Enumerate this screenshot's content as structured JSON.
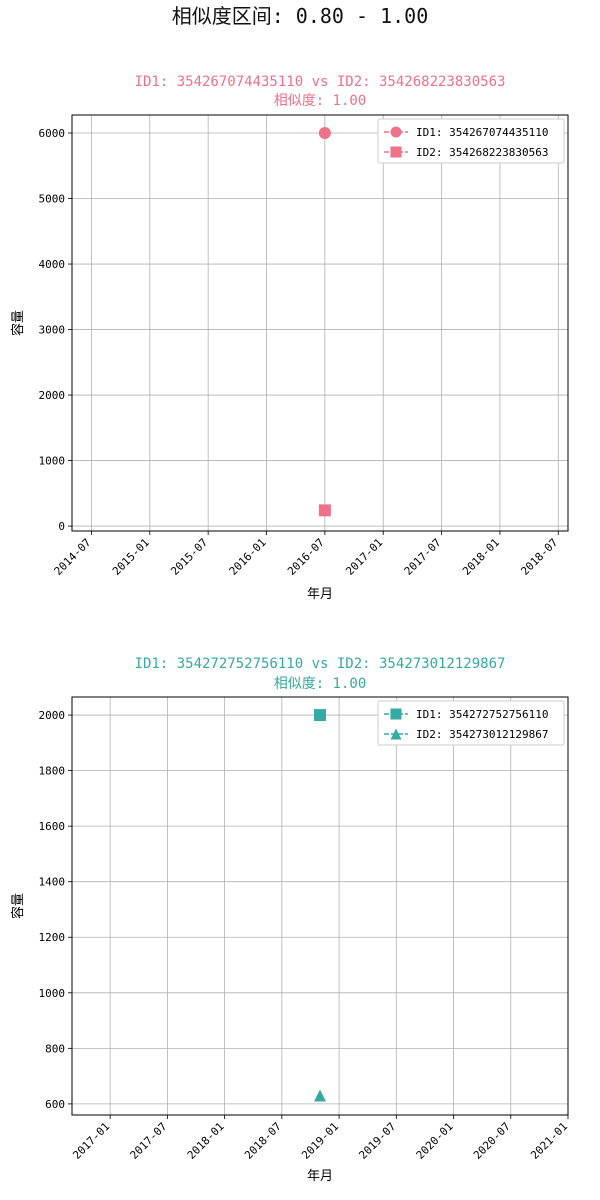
{
  "figure": {
    "suptitle": "相似度区间: 0.80 - 1.00"
  },
  "chart_data": [
    {
      "type": "scatter",
      "title": "ID1: 354267074435110 vs ID2: 354268223830563",
      "subtitle": "相似度: 1.00",
      "title_color": "#f0718a",
      "xlabel": "年月",
      "ylabel": "容量",
      "x_ticks": [
        "2014-07",
        "2015-01",
        "2015-07",
        "2016-01",
        "2016-07",
        "2017-01",
        "2017-07",
        "2018-01",
        "2018-07"
      ],
      "y_ticks": [
        "0",
        "1000",
        "2000",
        "3000",
        "4000",
        "5000",
        "6000"
      ],
      "xlim": [
        "2014-05",
        "2018-08"
      ],
      "ylim": [
        -75,
        6275
      ],
      "grid": true,
      "legend_position": "top-right",
      "series": [
        {
          "name": "ID1: 354267074435110",
          "marker": "circle",
          "color": "#f0718a",
          "points": [
            {
              "x": "2016-07",
              "y": 6000
            }
          ]
        },
        {
          "name": "ID2: 354268223830563",
          "marker": "square",
          "color": "#f0718a",
          "points": [
            {
              "x": "2016-07",
              "y": 240
            }
          ]
        }
      ]
    },
    {
      "type": "scatter",
      "title": "ID1: 354272752756110 vs ID2: 354273012129867",
      "subtitle": "相似度: 1.00",
      "title_color": "#35aaa5",
      "xlabel": "年月",
      "ylabel": "容量",
      "x_ticks": [
        "2017-01",
        "2017-07",
        "2018-01",
        "2018-07",
        "2019-01",
        "2019-07",
        "2020-01",
        "2020-07",
        "2021-01"
      ],
      "y_ticks": [
        "600",
        "800",
        "1000",
        "1200",
        "1400",
        "1600",
        "1800",
        "2000"
      ],
      "xlim": [
        "2016-09",
        "2021-01"
      ],
      "ylim": [
        560,
        2065
      ],
      "grid": true,
      "legend_position": "top-right",
      "series": [
        {
          "name": "ID1: 354272752756110",
          "marker": "square",
          "color": "#35aaa5",
          "points": [
            {
              "x": "2018-11",
              "y": 2000
            }
          ]
        },
        {
          "name": "ID2: 354273012129867",
          "marker": "triangle",
          "color": "#35aaa5",
          "points": [
            {
              "x": "2018-11",
              "y": 630
            }
          ]
        }
      ]
    }
  ]
}
